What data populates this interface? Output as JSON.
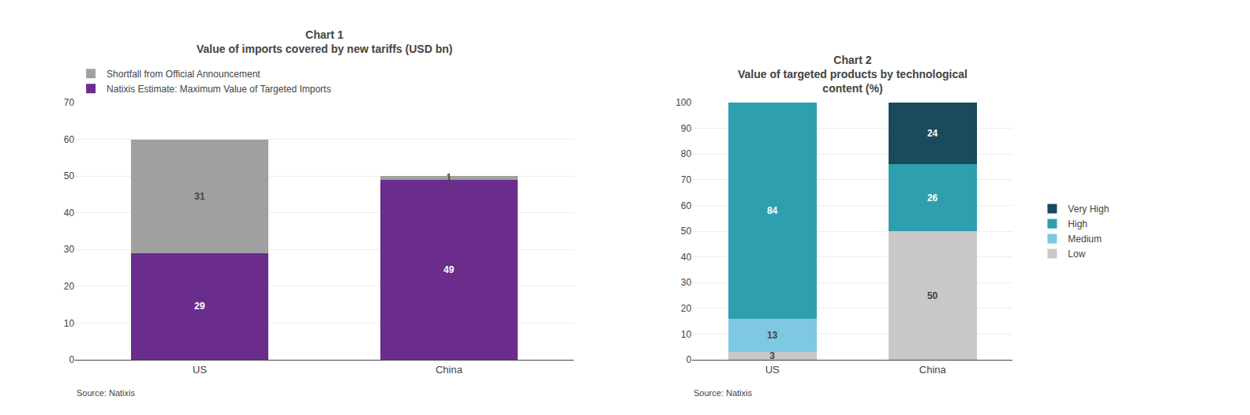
{
  "chart_data": [
    {
      "type": "bar",
      "stacked": true,
      "title": "Chart 1\nValue of imports covered by new tariffs (USD bn)",
      "categories": [
        "US",
        "China"
      ],
      "series": [
        {
          "name": "Natixis Estimate: Maximum Value of Targeted Imports",
          "color": "#6B2D8B",
          "values": [
            29,
            49
          ]
        },
        {
          "name": "Shortfall from Official Announcement",
          "color": "#A0A0A0",
          "values": [
            31,
            1
          ]
        }
      ],
      "ylim": [
        0,
        70
      ],
      "yticks": [
        0,
        10,
        20,
        30,
        40,
        50,
        60,
        70
      ],
      "grid": true,
      "legend": "upper left",
      "data_labels": true,
      "annotations": [
        "Source: Natixis"
      ]
    },
    {
      "type": "bar",
      "stacked": true,
      "title": "Chart 2\nValue of targeted products by technological\ncontent (%)",
      "categories": [
        "US",
        "China"
      ],
      "series": [
        {
          "name": "Low",
          "color": "#C8C8C8",
          "values": [
            3,
            50
          ]
        },
        {
          "name": "Medium",
          "color": "#7EC8E3",
          "values": [
            13,
            0
          ]
        },
        {
          "name": "High",
          "color": "#2E9FAF",
          "values": [
            84,
            26
          ]
        },
        {
          "name": "Very High",
          "color": "#1A4A5C",
          "values": [
            0,
            24
          ]
        }
      ],
      "ylim": [
        0,
        100
      ],
      "yticks": [
        0,
        10,
        20,
        30,
        40,
        50,
        60,
        70,
        80,
        90,
        100
      ],
      "grid": true,
      "legend": "right",
      "data_labels": true,
      "annotations": [
        "Source: Natixis"
      ]
    }
  ]
}
